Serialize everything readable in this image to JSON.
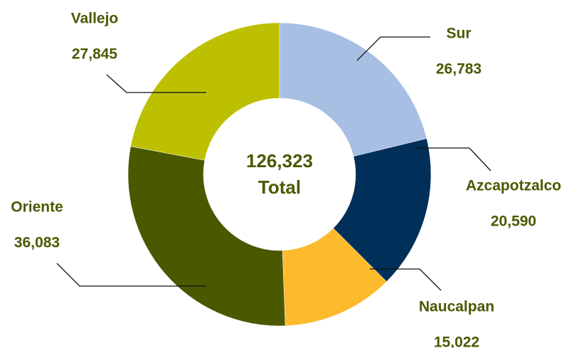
{
  "chart_data": {
    "type": "donut",
    "categories": [
      "Sur",
      "Azcapotzalco",
      "Naucalpan",
      "Oriente",
      "Vallejo"
    ],
    "values": [
      26783,
      20590,
      15022,
      36083,
      27845
    ],
    "value_labels": [
      "26,783",
      "20,590",
      "15,022",
      "36,083",
      "27,845"
    ],
    "colors": [
      "#a7bfe3",
      "#002f5a",
      "#fcba2c",
      "#4a5800",
      "#bcc000"
    ],
    "center_label": "126,323",
    "center_caption": "Total"
  }
}
